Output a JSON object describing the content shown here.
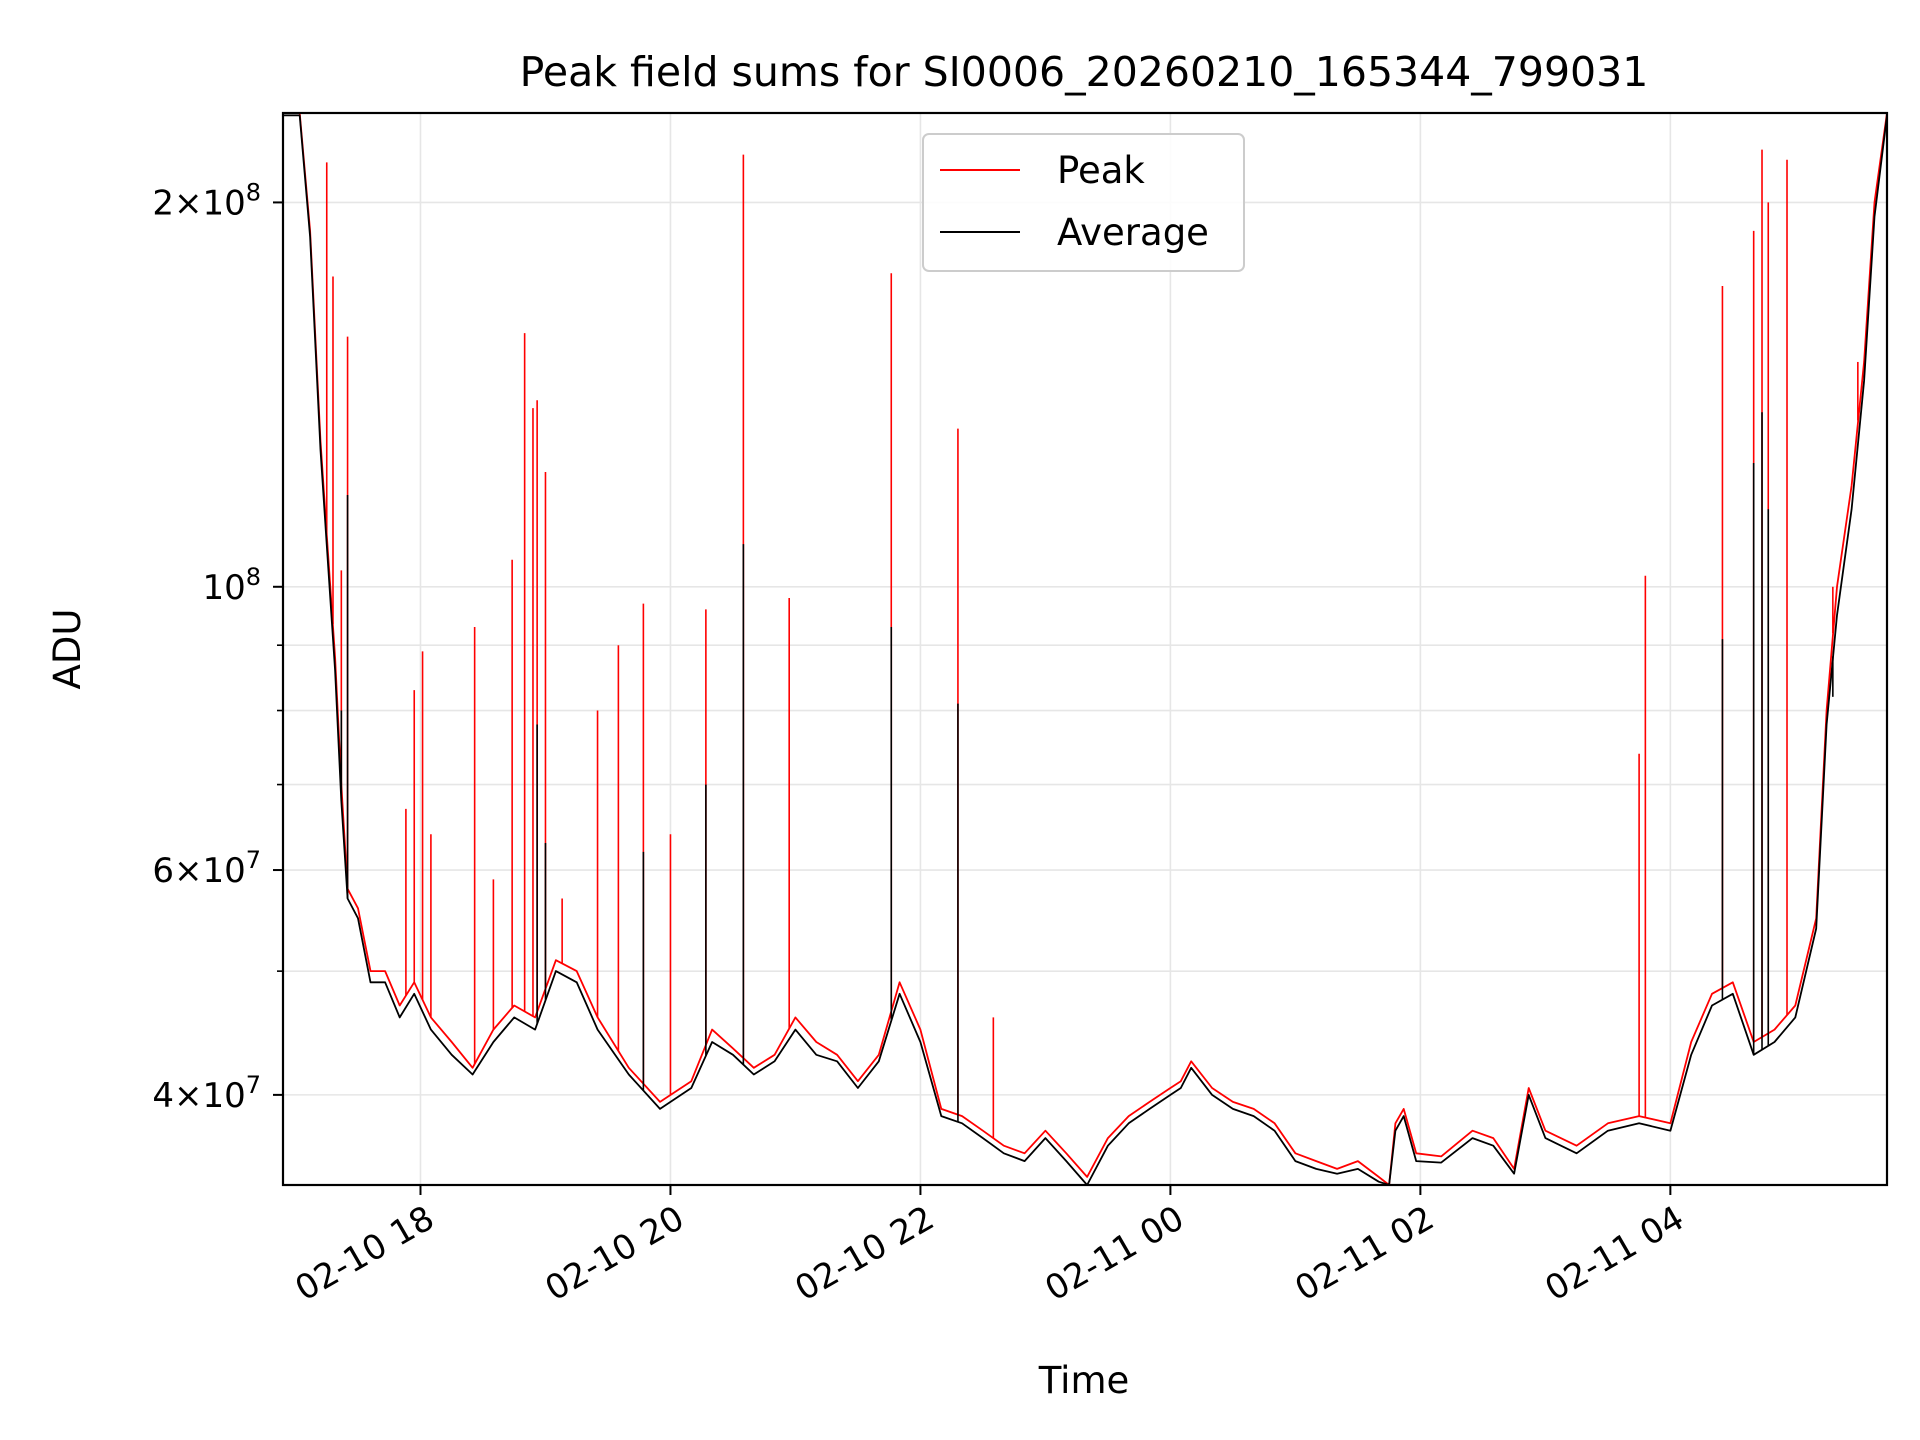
{
  "chart_data": {
    "type": "line",
    "title": "Peak field sums for SI0006_20260210_165344_799031",
    "xlabel": "Time",
    "ylabel": "ADU",
    "y_scale": "log",
    "ylim": [
      34000000,
      235000000
    ],
    "xlim": [
      "2026-02-10 16:54",
      "2026-02-11 05:44"
    ],
    "grid": true,
    "legend_position": "top-center",
    "x_ticks": [
      {
        "t": "2026-02-10 18:00",
        "label": "02-10 18"
      },
      {
        "t": "2026-02-10 20:00",
        "label": "02-10 20"
      },
      {
        "t": "2026-02-10 22:00",
        "label": "02-10 22"
      },
      {
        "t": "2026-02-11 00:00",
        "label": "02-11 00"
      },
      {
        "t": "2026-02-11 02:00",
        "label": "02-11 02"
      },
      {
        "t": "2026-02-11 04:00",
        "label": "02-11 04"
      }
    ],
    "y_ticks": [
      {
        "value": 40000000,
        "base": "4",
        "exp": "7"
      },
      {
        "value": 60000000,
        "base": "6",
        "exp": "7"
      },
      {
        "value": 100000000,
        "base": "",
        "exp": "8"
      },
      {
        "value": 200000000,
        "base": "2",
        "exp": "8"
      }
    ],
    "y_minor_ticks": [
      50000000,
      70000000,
      80000000,
      90000000
    ],
    "series": [
      {
        "name": "Peak",
        "color": "#ff0000",
        "points": [
          [
            "2026-02-10 16:54",
            235000000
          ],
          [
            "2026-02-10 17:02",
            235000000
          ],
          [
            "2026-02-10 17:07",
            190000000
          ],
          [
            "2026-02-10 17:12",
            130000000
          ],
          [
            "2026-02-10 17:15",
            110000000
          ],
          [
            "2026-02-10 17:19",
            88000000
          ],
          [
            "2026-02-10 17:22",
            70000000
          ],
          [
            "2026-02-10 17:25",
            58000000
          ],
          [
            "2026-02-10 17:30",
            56000000
          ],
          [
            "2026-02-10 17:36",
            50000000
          ],
          [
            "2026-02-10 17:43",
            50000000
          ],
          [
            "2026-02-10 17:50",
            47000000
          ],
          [
            "2026-02-10 17:57",
            49000000
          ],
          [
            "2026-02-10 18:05",
            46000000
          ],
          [
            "2026-02-10 18:15",
            44000000
          ],
          [
            "2026-02-10 18:25",
            42000000
          ],
          [
            "2026-02-10 18:35",
            45000000
          ],
          [
            "2026-02-10 18:45",
            47000000
          ],
          [
            "2026-02-10 18:55",
            46000000
          ],
          [
            "2026-02-10 19:05",
            51000000
          ],
          [
            "2026-02-10 19:15",
            50000000
          ],
          [
            "2026-02-10 19:25",
            46000000
          ],
          [
            "2026-02-10 19:40",
            42000000
          ],
          [
            "2026-02-10 19:55",
            39500000
          ],
          [
            "2026-02-10 20:10",
            41000000
          ],
          [
            "2026-02-10 20:20",
            45000000
          ],
          [
            "2026-02-10 20:30",
            43500000
          ],
          [
            "2026-02-10 20:40",
            42000000
          ],
          [
            "2026-02-10 20:50",
            43000000
          ],
          [
            "2026-02-10 21:00",
            46000000
          ],
          [
            "2026-02-10 21:10",
            44000000
          ],
          [
            "2026-02-10 21:20",
            43000000
          ],
          [
            "2026-02-10 21:30",
            41000000
          ],
          [
            "2026-02-10 21:40",
            43000000
          ],
          [
            "2026-02-10 21:50",
            49000000
          ],
          [
            "2026-02-10 22:00",
            45000000
          ],
          [
            "2026-02-10 22:10",
            39000000
          ],
          [
            "2026-02-10 22:20",
            38500000
          ],
          [
            "2026-02-10 22:30",
            37500000
          ],
          [
            "2026-02-10 22:40",
            36500000
          ],
          [
            "2026-02-10 22:50",
            36000000
          ],
          [
            "2026-02-10 23:00",
            37500000
          ],
          [
            "2026-02-10 23:10",
            36000000
          ],
          [
            "2026-02-10 23:20",
            34500000
          ],
          [
            "2026-02-10 23:30",
            37000000
          ],
          [
            "2026-02-10 23:40",
            38500000
          ],
          [
            "2026-02-10 23:50",
            39500000
          ],
          [
            "2026-02-11 00:00",
            40500000
          ],
          [
            "2026-02-11 00:05",
            41000000
          ],
          [
            "2026-02-11 00:10",
            42500000
          ],
          [
            "2026-02-11 00:20",
            40500000
          ],
          [
            "2026-02-11 00:30",
            39500000
          ],
          [
            "2026-02-11 00:40",
            39000000
          ],
          [
            "2026-02-11 00:50",
            38000000
          ],
          [
            "2026-02-11 01:00",
            36000000
          ],
          [
            "2026-02-11 01:10",
            35500000
          ],
          [
            "2026-02-11 01:20",
            35000000
          ],
          [
            "2026-02-11 01:30",
            35500000
          ],
          [
            "2026-02-11 01:40",
            34500000
          ],
          [
            "2026-02-11 01:45",
            34000000
          ],
          [
            "2026-02-11 01:48",
            38000000
          ],
          [
            "2026-02-11 01:52",
            39000000
          ],
          [
            "2026-02-11 01:58",
            36000000
          ],
          [
            "2026-02-11 02:10",
            35800000
          ],
          [
            "2026-02-11 02:25",
            37500000
          ],
          [
            "2026-02-11 02:35",
            37000000
          ],
          [
            "2026-02-11 02:45",
            35000000
          ],
          [
            "2026-02-11 02:52",
            40500000
          ],
          [
            "2026-02-11 03:00",
            37500000
          ],
          [
            "2026-02-11 03:15",
            36500000
          ],
          [
            "2026-02-11 03:30",
            38000000
          ],
          [
            "2026-02-11 03:45",
            38500000
          ],
          [
            "2026-02-11 04:00",
            38000000
          ],
          [
            "2026-02-11 04:10",
            44000000
          ],
          [
            "2026-02-11 04:20",
            48000000
          ],
          [
            "2026-02-11 04:30",
            49000000
          ],
          [
            "2026-02-11 04:40",
            44000000
          ],
          [
            "2026-02-11 04:50",
            45000000
          ],
          [
            "2026-02-11 05:00",
            47000000
          ],
          [
            "2026-02-11 05:10",
            55000000
          ],
          [
            "2026-02-11 05:15",
            80000000
          ],
          [
            "2026-02-11 05:20",
            100000000
          ],
          [
            "2026-02-11 05:27",
            120000000
          ],
          [
            "2026-02-11 05:33",
            150000000
          ],
          [
            "2026-02-11 05:38",
            200000000
          ],
          [
            "2026-02-11 05:44",
            235000000
          ]
        ],
        "spikes": [
          [
            "2026-02-10 17:15",
            215000000
          ],
          [
            "2026-02-10 17:18",
            175000000
          ],
          [
            "2026-02-10 17:22",
            103000000
          ],
          [
            "2026-02-10 17:25",
            157000000
          ],
          [
            "2026-02-10 17:53",
            67000000
          ],
          [
            "2026-02-10 17:57",
            83000000
          ],
          [
            "2026-02-10 18:01",
            89000000
          ],
          [
            "2026-02-10 18:05",
            64000000
          ],
          [
            "2026-02-10 18:26",
            93000000
          ],
          [
            "2026-02-10 18:35",
            59000000
          ],
          [
            "2026-02-10 18:44",
            105000000
          ],
          [
            "2026-02-10 18:50",
            158000000
          ],
          [
            "2026-02-10 18:54",
            138000000
          ],
          [
            "2026-02-10 18:56",
            140000000
          ],
          [
            "2026-02-10 19:00",
            123000000
          ],
          [
            "2026-02-10 19:08",
            57000000
          ],
          [
            "2026-02-10 19:25",
            80000000
          ],
          [
            "2026-02-10 19:35",
            90000000
          ],
          [
            "2026-02-10 19:47",
            97000000
          ],
          [
            "2026-02-10 20:00",
            64000000
          ],
          [
            "2026-02-10 20:17",
            96000000
          ],
          [
            "2026-02-10 20:35",
            218000000
          ],
          [
            "2026-02-10 20:57",
            98000000
          ],
          [
            "2026-02-10 21:46",
            176000000
          ],
          [
            "2026-02-10 22:18",
            133000000
          ],
          [
            "2026-02-10 22:35",
            46000000
          ],
          [
            "2026-02-11 03:45",
            74000000
          ],
          [
            "2026-02-11 03:48",
            102000000
          ],
          [
            "2026-02-11 04:25",
            172000000
          ],
          [
            "2026-02-11 04:40",
            190000000
          ],
          [
            "2026-02-11 04:44",
            220000000
          ],
          [
            "2026-02-11 04:47",
            200000000
          ],
          [
            "2026-02-11 04:56",
            216000000
          ],
          [
            "2026-02-11 05:18",
            100000000
          ],
          [
            "2026-02-11 05:30",
            150000000
          ]
        ]
      },
      {
        "name": "Average",
        "color": "#000000",
        "points": [
          [
            "2026-02-10 16:54",
            234000000
          ],
          [
            "2026-02-10 17:02",
            234000000
          ],
          [
            "2026-02-10 17:07",
            188000000
          ],
          [
            "2026-02-10 17:12",
            128000000
          ],
          [
            "2026-02-10 17:15",
            108000000
          ],
          [
            "2026-02-10 17:19",
            86000000
          ],
          [
            "2026-02-10 17:22",
            68000000
          ],
          [
            "2026-02-10 17:25",
            57000000
          ],
          [
            "2026-02-10 17:30",
            55000000
          ],
          [
            "2026-02-10 17:36",
            49000000
          ],
          [
            "2026-02-10 17:43",
            49000000
          ],
          [
            "2026-02-10 17:50",
            46000000
          ],
          [
            "2026-02-10 17:57",
            48000000
          ],
          [
            "2026-02-10 18:05",
            45000000
          ],
          [
            "2026-02-10 18:15",
            43000000
          ],
          [
            "2026-02-10 18:25",
            41500000
          ],
          [
            "2026-02-10 18:35",
            44000000
          ],
          [
            "2026-02-10 18:45",
            46000000
          ],
          [
            "2026-02-10 18:55",
            45000000
          ],
          [
            "2026-02-10 19:05",
            50000000
          ],
          [
            "2026-02-10 19:15",
            49000000
          ],
          [
            "2026-02-10 19:25",
            45000000
          ],
          [
            "2026-02-10 19:40",
            41500000
          ],
          [
            "2026-02-10 19:55",
            39000000
          ],
          [
            "2026-02-10 20:10",
            40500000
          ],
          [
            "2026-02-10 20:20",
            44000000
          ],
          [
            "2026-02-10 20:30",
            43000000
          ],
          [
            "2026-02-10 20:40",
            41500000
          ],
          [
            "2026-02-10 20:50",
            42500000
          ],
          [
            "2026-02-10 21:00",
            45000000
          ],
          [
            "2026-02-10 21:10",
            43000000
          ],
          [
            "2026-02-10 21:20",
            42500000
          ],
          [
            "2026-02-10 21:30",
            40500000
          ],
          [
            "2026-02-10 21:40",
            42500000
          ],
          [
            "2026-02-10 21:50",
            48000000
          ],
          [
            "2026-02-10 22:00",
            44000000
          ],
          [
            "2026-02-10 22:10",
            38500000
          ],
          [
            "2026-02-10 22:20",
            38000000
          ],
          [
            "2026-02-10 22:30",
            37000000
          ],
          [
            "2026-02-10 22:40",
            36000000
          ],
          [
            "2026-02-10 22:50",
            35500000
          ],
          [
            "2026-02-10 23:00",
            37000000
          ],
          [
            "2026-02-10 23:10",
            35500000
          ],
          [
            "2026-02-10 23:20",
            34000000
          ],
          [
            "2026-02-10 23:30",
            36500000
          ],
          [
            "2026-02-10 23:40",
            38000000
          ],
          [
            "2026-02-10 23:50",
            39000000
          ],
          [
            "2026-02-11 00:00",
            40000000
          ],
          [
            "2026-02-11 00:05",
            40500000
          ],
          [
            "2026-02-11 00:10",
            42000000
          ],
          [
            "2026-02-11 00:20",
            40000000
          ],
          [
            "2026-02-11 00:30",
            39000000
          ],
          [
            "2026-02-11 00:40",
            38500000
          ],
          [
            "2026-02-11 00:50",
            37500000
          ],
          [
            "2026-02-11 01:00",
            35500000
          ],
          [
            "2026-02-11 01:10",
            35000000
          ],
          [
            "2026-02-11 01:20",
            34700000
          ],
          [
            "2026-02-11 01:30",
            35000000
          ],
          [
            "2026-02-11 01:40",
            34200000
          ],
          [
            "2026-02-11 01:45",
            34000000
          ],
          [
            "2026-02-11 01:48",
            37500000
          ],
          [
            "2026-02-11 01:52",
            38500000
          ],
          [
            "2026-02-11 01:58",
            35500000
          ],
          [
            "2026-02-11 02:10",
            35400000
          ],
          [
            "2026-02-11 02:25",
            37000000
          ],
          [
            "2026-02-11 02:35",
            36500000
          ],
          [
            "2026-02-11 02:45",
            34700000
          ],
          [
            "2026-02-11 02:52",
            40000000
          ],
          [
            "2026-02-11 03:00",
            37000000
          ],
          [
            "2026-02-11 03:15",
            36000000
          ],
          [
            "2026-02-11 03:30",
            37500000
          ],
          [
            "2026-02-11 03:45",
            38000000
          ],
          [
            "2026-02-11 04:00",
            37500000
          ],
          [
            "2026-02-11 04:10",
            43000000
          ],
          [
            "2026-02-11 04:20",
            47000000
          ],
          [
            "2026-02-11 04:30",
            48000000
          ],
          [
            "2026-02-11 04:40",
            43000000
          ],
          [
            "2026-02-11 04:50",
            44000000
          ],
          [
            "2026-02-11 05:00",
            46000000
          ],
          [
            "2026-02-11 05:10",
            54000000
          ],
          [
            "2026-02-11 05:15",
            78000000
          ],
          [
            "2026-02-11 05:20",
            95000000
          ],
          [
            "2026-02-11 05:27",
            115000000
          ],
          [
            "2026-02-11 05:33",
            145000000
          ],
          [
            "2026-02-11 05:38",
            195000000
          ],
          [
            "2026-02-11 05:44",
            234000000
          ]
        ],
        "spikes": [
          [
            "2026-02-10 17:22",
            80000000
          ],
          [
            "2026-02-10 17:25",
            118000000
          ],
          [
            "2026-02-10 18:56",
            78000000
          ],
          [
            "2026-02-10 19:00",
            63000000
          ],
          [
            "2026-02-10 19:47",
            62000000
          ],
          [
            "2026-02-10 20:17",
            70000000
          ],
          [
            "2026-02-10 20:35",
            108000000
          ],
          [
            "2026-02-10 21:46",
            93000000
          ],
          [
            "2026-02-10 22:18",
            81000000
          ],
          [
            "2026-02-11 04:25",
            91000000
          ],
          [
            "2026-02-11 04:40",
            125000000
          ],
          [
            "2026-02-11 04:44",
            137000000
          ],
          [
            "2026-02-11 04:47",
            115000000
          ],
          [
            "2026-02-11 05:18",
            82000000
          ]
        ]
      }
    ]
  }
}
